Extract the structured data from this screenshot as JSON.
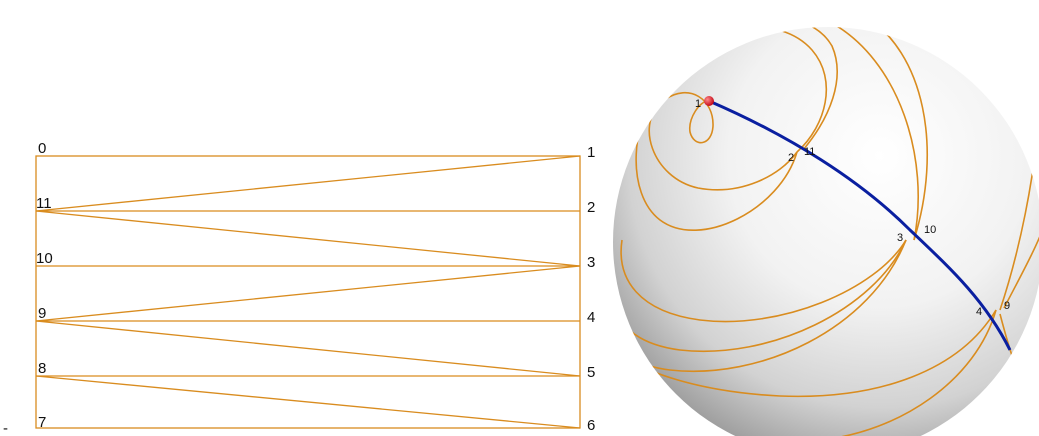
{
  "colors": {
    "orange": "#D98C1F",
    "blue": "#0A1FA0",
    "red": "#E0141E",
    "background": "#ffffff"
  },
  "left_panel": {
    "left_labels": [
      "0",
      "11",
      "10",
      "9",
      "8",
      "7"
    ],
    "right_labels": [
      "1",
      "2",
      "3",
      "4",
      "5",
      "6"
    ],
    "corner_mark": "-"
  },
  "right_panel": {
    "point_labels": [
      {
        "text": "1"
      },
      {
        "text": "2"
      },
      {
        "text": "11"
      },
      {
        "text": "3"
      },
      {
        "text": "10"
      },
      {
        "text": "4"
      },
      {
        "text": "9"
      }
    ]
  }
}
